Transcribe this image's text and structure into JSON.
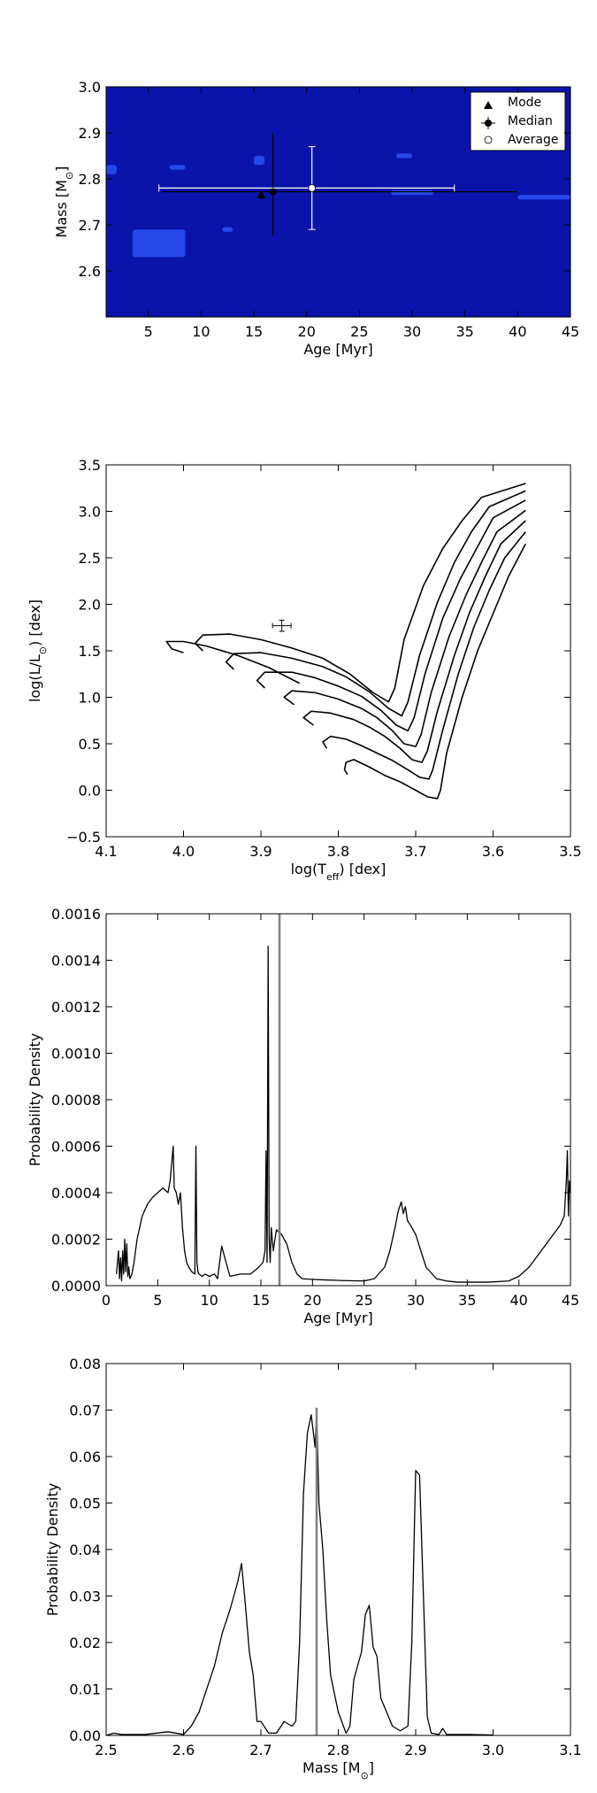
{
  "chart_data": [
    {
      "type": "heatmap",
      "xlabel": "Age [Myr]",
      "ylabel": "Mass [M",
      "ylabel_sub": "⊙",
      "ylabel_end": "]",
      "xlim": [
        1,
        45
      ],
      "ylim": [
        2.5,
        3.0
      ],
      "xticks": [
        5,
        10,
        15,
        20,
        25,
        30,
        35,
        40,
        45
      ],
      "yticks": [
        2.6,
        2.7,
        2.8,
        2.9,
        3.0
      ],
      "xtick_labels": [
        "5",
        "10",
        "15",
        "20",
        "25",
        "30",
        "35",
        "40",
        "45"
      ],
      "ytick_labels": [
        "2.6",
        "2.7",
        "2.8",
        "2.9",
        "3.0"
      ],
      "background_color": "#0a14aa",
      "highlight_color": "#2a4ef0",
      "blobs": [
        {
          "x0": 3.5,
          "x1": 8.5,
          "y0": 2.63,
          "y1": 2.69
        },
        {
          "x0": 12.0,
          "x1": 13.0,
          "y0": 2.685,
          "y1": 2.695
        },
        {
          "x0": 7.0,
          "x1": 8.5,
          "y0": 2.82,
          "y1": 2.83
        },
        {
          "x0": 15.0,
          "x1": 16.0,
          "y0": 2.83,
          "y1": 2.85
        },
        {
          "x0": 28.5,
          "x1": 30.0,
          "y0": 2.845,
          "y1": 2.855
        },
        {
          "x0": 28.0,
          "x1": 32.0,
          "y0": 2.765,
          "y1": 2.775
        },
        {
          "x0": 40.0,
          "x1": 45.0,
          "y0": 2.755,
          "y1": 2.765
        },
        {
          "x0": 1.0,
          "x1": 2.0,
          "y0": 2.81,
          "y1": 2.83
        }
      ],
      "legend": {
        "placement": "top-right",
        "entries": [
          "Mode",
          "Median",
          "Average"
        ]
      },
      "points": {
        "mode": {
          "x": 15.7,
          "y": 2.765
        },
        "median": {
          "x": 16.8,
          "y": 2.772,
          "xerr": [
            6.3,
            40.0
          ],
          "yerr": [
            2.675,
            2.9
          ]
        },
        "average": {
          "x": 20.5,
          "y": 2.78,
          "xerr": [
            6.0,
            34.0
          ],
          "yerr": [
            2.69,
            2.87
          ]
        }
      }
    },
    {
      "type": "line",
      "xlabel": "log(T",
      "xlabel_sub": "eff",
      "xlabel_end": ") [dex]",
      "ylabel": "log(L/L",
      "ylabel_sub": "⊙",
      "ylabel_end": ") [dex]",
      "xlim": [
        4.1,
        3.5
      ],
      "ylim": [
        -0.5,
        3.5
      ],
      "xticks": [
        4.1,
        4.0,
        3.9,
        3.8,
        3.7,
        3.6,
        3.5
      ],
      "yticks": [
        -0.5,
        0.0,
        0.5,
        1.0,
        1.5,
        2.0,
        2.5,
        3.0,
        3.5
      ],
      "xtick_labels": [
        "4.1",
        "4.0",
        "3.9",
        "3.8",
        "3.7",
        "3.6",
        "3.5"
      ],
      "ytick_labels": [
        "−0.5",
        "0.0",
        "0.5",
        "1.0",
        "1.5",
        "2.0",
        "2.5",
        "3.0",
        "3.5"
      ],
      "star": {
        "x": 3.873,
        "y": 1.77,
        "xerr": 0.012,
        "yerr": 0.06
      },
      "series": [
        {
          "x": [
            3.788,
            3.792,
            3.79,
            3.78,
            3.76,
            3.74,
            3.72,
            3.7,
            3.685,
            3.672,
            3.668,
            3.66,
            3.64,
            3.62,
            3.6,
            3.58,
            3.558
          ],
          "y": [
            0.17,
            0.22,
            0.3,
            0.33,
            0.25,
            0.16,
            0.09,
            0.0,
            -0.07,
            -0.09,
            0.0,
            0.4,
            1.0,
            1.5,
            1.9,
            2.3,
            2.65
          ]
        },
        {
          "x": [
            3.815,
            3.82,
            3.81,
            3.79,
            3.77,
            3.75,
            3.73,
            3.71,
            3.695,
            3.683,
            3.678,
            3.665,
            3.645,
            3.625,
            3.605,
            3.585,
            3.558
          ],
          "y": [
            0.45,
            0.52,
            0.58,
            0.55,
            0.48,
            0.4,
            0.32,
            0.22,
            0.14,
            0.12,
            0.22,
            0.65,
            1.25,
            1.75,
            2.15,
            2.5,
            2.78
          ]
        },
        {
          "x": [
            3.832,
            3.845,
            3.835,
            3.81,
            3.78,
            3.76,
            3.74,
            3.72,
            3.705,
            3.692,
            3.685,
            3.672,
            3.65,
            3.63,
            3.61,
            3.59,
            3.558
          ],
          "y": [
            0.7,
            0.78,
            0.85,
            0.83,
            0.76,
            0.68,
            0.58,
            0.45,
            0.33,
            0.3,
            0.42,
            0.85,
            1.45,
            1.92,
            2.3,
            2.65,
            2.9
          ]
        },
        {
          "x": [
            3.857,
            3.87,
            3.86,
            3.83,
            3.8,
            3.77,
            3.75,
            3.73,
            3.715,
            3.7,
            3.693,
            3.68,
            3.657,
            3.635,
            3.615,
            3.595,
            3.558
          ],
          "y": [
            0.92,
            1.0,
            1.07,
            1.05,
            0.98,
            0.88,
            0.78,
            0.64,
            0.5,
            0.47,
            0.6,
            1.05,
            1.65,
            2.1,
            2.45,
            2.78,
            3.01
          ]
        },
        {
          "x": [
            3.895,
            3.905,
            3.895,
            3.86,
            3.83,
            3.8,
            3.77,
            3.745,
            3.725,
            3.71,
            3.702,
            3.688,
            3.665,
            3.642,
            3.62,
            3.6,
            3.558
          ],
          "y": [
            1.1,
            1.18,
            1.27,
            1.27,
            1.21,
            1.12,
            1.01,
            0.86,
            0.7,
            0.64,
            0.78,
            1.25,
            1.85,
            2.28,
            2.62,
            2.93,
            3.12
          ]
        },
        {
          "x": [
            3.935,
            3.945,
            3.935,
            3.9,
            3.86,
            3.82,
            3.79,
            3.76,
            3.735,
            3.718,
            3.71,
            3.695,
            3.672,
            3.65,
            3.628,
            3.605,
            3.558
          ],
          "y": [
            1.3,
            1.38,
            1.47,
            1.48,
            1.42,
            1.33,
            1.22,
            1.06,
            0.88,
            0.8,
            0.95,
            1.45,
            2.02,
            2.45,
            2.78,
            3.05,
            3.22
          ]
        },
        {
          "x": [
            3.975,
            3.985,
            3.975,
            3.94,
            3.9,
            3.86,
            3.82,
            3.785,
            3.755,
            3.735,
            3.727,
            3.715,
            3.69,
            3.665,
            3.64,
            3.615,
            3.558
          ],
          "y": [
            1.5,
            1.58,
            1.67,
            1.68,
            1.62,
            1.53,
            1.42,
            1.25,
            1.05,
            0.95,
            1.1,
            1.62,
            2.2,
            2.6,
            2.9,
            3.15,
            3.3
          ]
        },
        {
          "x": [
            4.0,
            4.015,
            4.022,
            4.0,
            3.97,
            3.93,
            3.89,
            3.85
          ],
          "y": [
            1.48,
            1.52,
            1.6,
            1.6,
            1.55,
            1.45,
            1.32,
            1.15
          ]
        }
      ]
    },
    {
      "type": "line",
      "xlabel": "Age [Myr]",
      "ylabel": "Probability Density",
      "xlim": [
        0,
        45
      ],
      "ylim": [
        0,
        0.0016
      ],
      "xticks": [
        0,
        5,
        10,
        15,
        20,
        25,
        30,
        35,
        40,
        45
      ],
      "yticks": [
        0,
        0.0002,
        0.0004,
        0.0006,
        0.0008,
        0.001,
        0.0012,
        0.0014,
        0.0016
      ],
      "xtick_labels": [
        "0",
        "5",
        "10",
        "15",
        "20",
        "25",
        "30",
        "35",
        "40",
        "45"
      ],
      "ytick_labels": [
        "0.0000",
        "0.0002",
        "0.0004",
        "0.0006",
        "0.0008",
        "0.0010",
        "0.0012",
        "0.0014",
        "0.0016"
      ],
      "vline": 16.8,
      "vline_color": "#808080",
      "series": [
        {
          "x": [
            1.0,
            1.2,
            1.3,
            1.4,
            1.5,
            1.6,
            1.7,
            1.8,
            1.9,
            2.0,
            2.1,
            2.2,
            2.3,
            2.5,
            2.7,
            3.0,
            3.5,
            4.0,
            4.5,
            5.0,
            5.5,
            6.0,
            6.2,
            6.4,
            6.5,
            6.6,
            6.8,
            7.0,
            7.2,
            7.4,
            7.6,
            7.8,
            8.0,
            8.3,
            8.6,
            8.7,
            8.8,
            8.9,
            9.0,
            9.3,
            9.6,
            10.0,
            10.5,
            10.8,
            11.0,
            11.2,
            11.5,
            12.0,
            13.0,
            14.0,
            14.8,
            15.2,
            15.4,
            15.5,
            15.6,
            15.7,
            15.8,
            15.9,
            16.0,
            16.2,
            16.5,
            17.0,
            17.5,
            18.0,
            18.5,
            19.0,
            19.5,
            20.0,
            21.0,
            23.0,
            25.0,
            26.0,
            27.0,
            27.5,
            28.0,
            28.3,
            28.6,
            28.8,
            29.0,
            29.2,
            29.5,
            30.0,
            30.5,
            31.0,
            32.0,
            33.0,
            34.0,
            35.0,
            37.0,
            39.0,
            40.0,
            41.0,
            42.0,
            43.0,
            44.0,
            44.4,
            44.6,
            44.7,
            44.8,
            44.9,
            45.0
          ],
          "y": [
            5e-05,
            0.00015,
            3e-05,
            0.00012,
            2e-05,
            0.00015,
            5e-05,
            0.0002,
            6e-05,
            0.00018,
            4e-05,
            8e-05,
            3e-05,
            5e-05,
            0.0001,
            0.0002,
            0.0003,
            0.00035,
            0.00038,
            0.0004,
            0.00042,
            0.0004,
            0.00045,
            0.00055,
            0.0006,
            0.00042,
            0.0004,
            0.00035,
            0.0004,
            0.00025,
            0.00015,
            0.0001,
            8e-05,
            6e-05,
            5e-05,
            0.0006,
            0.0001,
            6e-05,
            5e-05,
            4e-05,
            5e-05,
            4e-05,
            5e-05,
            3e-05,
            0.0001,
            0.00017,
            0.00012,
            4e-05,
            5e-05,
            5e-05,
            8e-05,
            0.0001,
            0.00015,
            0.00058,
            0.0001,
            0.00146,
            0.0002,
            0.0001,
            0.00025,
            0.00015,
            0.00024,
            0.00022,
            0.00018,
            0.0001,
            5e-05,
            3e-05,
            2.8e-05,
            2.7e-05,
            2.5e-05,
            2.2e-05,
            2e-05,
            3e-05,
            8e-05,
            0.00015,
            0.00025,
            0.00032,
            0.00036,
            0.00031,
            0.00034,
            0.00028,
            0.00026,
            0.00022,
            0.00015,
            8e-05,
            3e-05,
            2e-05,
            1.5e-05,
            1.5e-05,
            1.5e-05,
            2e-05,
            4e-05,
            8e-05,
            0.00014,
            0.0002,
            0.00026,
            0.0003,
            0.00045,
            0.00058,
            0.0003,
            0.00045,
            0.0004
          ]
        }
      ]
    },
    {
      "type": "line",
      "xlabel": "Mass [M",
      "xlabel_sub": "⊙",
      "xlabel_end": "]",
      "ylabel": "Probability Density",
      "xlim": [
        2.5,
        3.1
      ],
      "ylim": [
        0,
        0.08
      ],
      "xticks": [
        2.5,
        2.6,
        2.7,
        2.8,
        2.9,
        3.0,
        3.1
      ],
      "yticks": [
        0,
        0.01,
        0.02,
        0.03,
        0.04,
        0.05,
        0.06,
        0.07,
        0.08
      ],
      "xtick_labels": [
        "2.5",
        "2.6",
        "2.7",
        "2.8",
        "2.9",
        "3.0",
        "3.1"
      ],
      "ytick_labels": [
        "0.00",
        "0.01",
        "0.02",
        "0.03",
        "0.04",
        "0.05",
        "0.06",
        "0.07",
        "0.08"
      ],
      "vline": 2.772,
      "vline_color": "#808080",
      "series": [
        {
          "x": [
            2.5,
            2.51,
            2.52,
            2.55,
            2.58,
            2.6,
            2.61,
            2.62,
            2.63,
            2.64,
            2.65,
            2.66,
            2.67,
            2.675,
            2.68,
            2.685,
            2.69,
            2.695,
            2.7,
            2.71,
            2.72,
            2.73,
            2.74,
            2.745,
            2.75,
            2.755,
            2.76,
            2.765,
            2.77,
            2.772,
            2.775,
            2.78,
            2.785,
            2.79,
            2.795,
            2.8,
            2.81,
            2.815,
            2.82,
            2.83,
            2.835,
            2.84,
            2.845,
            2.85,
            2.855,
            2.86,
            2.87,
            2.88,
            2.89,
            2.895,
            2.9,
            2.905,
            2.91,
            2.915,
            2.92,
            2.93,
            2.935,
            2.94,
            2.95,
            2.97,
            3.0
          ],
          "y": [
            0.0,
            0.0005,
            0.0002,
            0.0002,
            0.0008,
            0.0002,
            0.002,
            0.005,
            0.01,
            0.015,
            0.022,
            0.027,
            0.033,
            0.037,
            0.028,
            0.018,
            0.013,
            0.003,
            0.003,
            0.0005,
            0.0005,
            0.003,
            0.002,
            0.003,
            0.02,
            0.052,
            0.065,
            0.069,
            0.062,
            0.07,
            0.05,
            0.04,
            0.025,
            0.013,
            0.009,
            0.005,
            0.0005,
            0.002,
            0.012,
            0.018,
            0.026,
            0.028,
            0.019,
            0.017,
            0.008,
            0.006,
            0.002,
            0.001,
            0.002,
            0.02,
            0.057,
            0.056,
            0.03,
            0.004,
            0.0005,
            0.0002,
            0.0015,
            0.0002,
            0.0002,
            0.0002,
            0.0001
          ]
        }
      ]
    }
  ]
}
